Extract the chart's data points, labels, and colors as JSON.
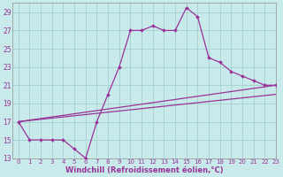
{
  "xlabel": "Windchill (Refroidissement éolien,°C)",
  "bg_color": "#c8eaea",
  "grid_color": "#a8d4d4",
  "line_color": "#993399",
  "x_hours": [
    0,
    1,
    2,
    3,
    4,
    5,
    6,
    7,
    8,
    9,
    10,
    11,
    12,
    13,
    14,
    15,
    16,
    17,
    18,
    19,
    20,
    21,
    22,
    23
  ],
  "temp_line": [
    17,
    15,
    15,
    15,
    15,
    14,
    13,
    17,
    20,
    23,
    27,
    27,
    27.5,
    27,
    27,
    29.5,
    28.5,
    24,
    23.5,
    22.5,
    22,
    21.5,
    21,
    21
  ],
  "ylim": [
    13,
    30
  ],
  "yticks": [
    13,
    15,
    17,
    19,
    21,
    23,
    25,
    27,
    29
  ],
  "xlim": [
    -0.5,
    23
  ],
  "xticks": [
    0,
    1,
    2,
    3,
    4,
    5,
    6,
    7,
    8,
    9,
    10,
    11,
    12,
    13,
    14,
    15,
    16,
    17,
    18,
    19,
    20,
    21,
    22,
    23
  ],
  "tick_fontsize": 5.5,
  "xlabel_fontsize": 6.0
}
